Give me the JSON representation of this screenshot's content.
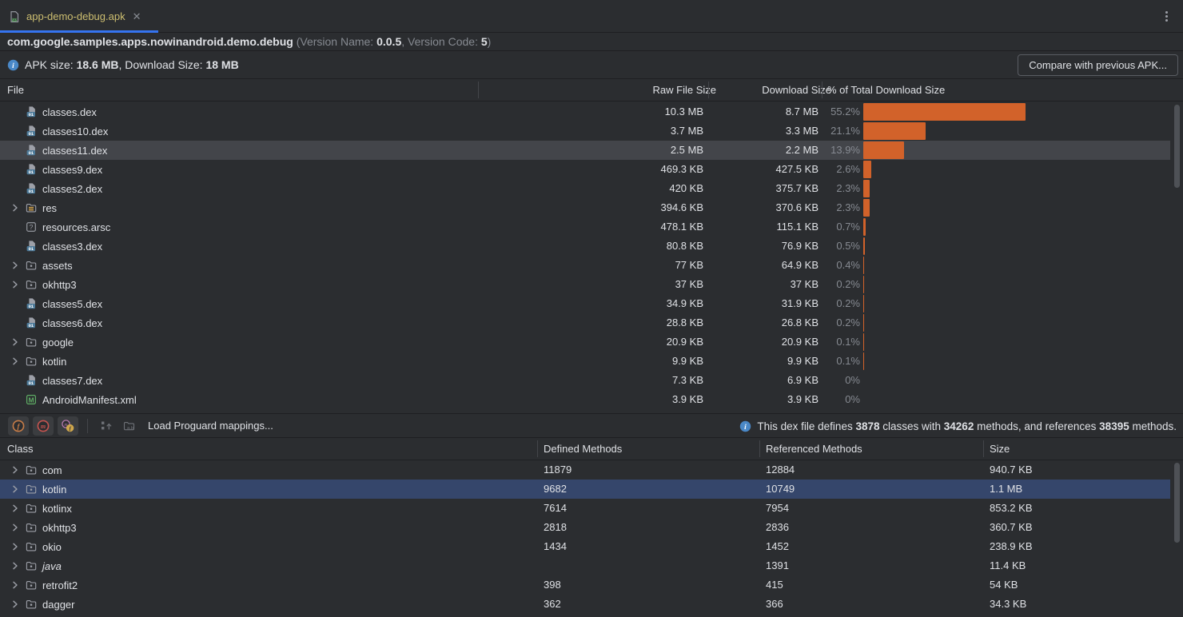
{
  "window": {
    "more_options_glyph": "kebab-menu"
  },
  "tab": {
    "label": "app-demo-debug.apk",
    "close_glyph": "✕"
  },
  "header": {
    "package_name": "com.google.samples.apps.nowinandroid.demo.debug",
    "version_open": " (Version Name: ",
    "version_name": "0.0.5",
    "version_sep": ", Version Code: ",
    "version_code": "5",
    "version_close": ")",
    "apk_size_label": "APK size: ",
    "apk_size_value": "18.6 MB",
    "download_size_label": ", Download Size: ",
    "download_size_value": "18 MB",
    "compare_button_label": "Compare with previous APK..."
  },
  "files_table": {
    "columns": {
      "file": "File",
      "raw": "Raw File Size",
      "download": "Download Size",
      "percent": "% of Total Download Size"
    },
    "rows": [
      {
        "name": "classes.dex",
        "icon": "dex-file-icon",
        "expandable": false,
        "raw": "10.3 MB",
        "download": "8.7 MB",
        "percent_label": "55.2%",
        "percent": 55.2,
        "selected": false
      },
      {
        "name": "classes10.dex",
        "icon": "dex-file-icon",
        "expandable": false,
        "raw": "3.7 MB",
        "download": "3.3 MB",
        "percent_label": "21.1%",
        "percent": 21.1,
        "selected": false
      },
      {
        "name": "classes11.dex",
        "icon": "dex-file-icon",
        "expandable": false,
        "raw": "2.5 MB",
        "download": "2.2 MB",
        "percent_label": "13.9%",
        "percent": 13.9,
        "selected": true
      },
      {
        "name": "classes9.dex",
        "icon": "dex-file-icon",
        "expandable": false,
        "raw": "469.3 KB",
        "download": "427.5 KB",
        "percent_label": "2.6%",
        "percent": 2.6,
        "selected": false
      },
      {
        "name": "classes2.dex",
        "icon": "dex-file-icon",
        "expandable": false,
        "raw": "420 KB",
        "download": "375.7 KB",
        "percent_label": "2.3%",
        "percent": 2.3,
        "selected": false
      },
      {
        "name": "res",
        "icon": "res-folder-icon",
        "expandable": true,
        "raw": "394.6 KB",
        "download": "370.6 KB",
        "percent_label": "2.3%",
        "percent": 2.3,
        "selected": false
      },
      {
        "name": "resources.arsc",
        "icon": "arsc-file-icon",
        "expandable": false,
        "raw": "478.1 KB",
        "download": "115.1 KB",
        "percent_label": "0.7%",
        "percent": 0.7,
        "selected": false
      },
      {
        "name": "classes3.dex",
        "icon": "dex-file-icon",
        "expandable": false,
        "raw": "80.8 KB",
        "download": "76.9 KB",
        "percent_label": "0.5%",
        "percent": 0.5,
        "selected": false
      },
      {
        "name": "assets",
        "icon": "folder-icon",
        "expandable": true,
        "raw": "77 KB",
        "download": "64.9 KB",
        "percent_label": "0.4%",
        "percent": 0.4,
        "selected": false
      },
      {
        "name": "okhttp3",
        "icon": "folder-icon",
        "expandable": true,
        "raw": "37 KB",
        "download": "37 KB",
        "percent_label": "0.2%",
        "percent": 0.2,
        "selected": false
      },
      {
        "name": "classes5.dex",
        "icon": "dex-file-icon",
        "expandable": false,
        "raw": "34.9 KB",
        "download": "31.9 KB",
        "percent_label": "0.2%",
        "percent": 0.2,
        "selected": false
      },
      {
        "name": "classes6.dex",
        "icon": "dex-file-icon",
        "expandable": false,
        "raw": "28.8 KB",
        "download": "26.8 KB",
        "percent_label": "0.2%",
        "percent": 0.2,
        "selected": false
      },
      {
        "name": "google",
        "icon": "folder-icon",
        "expandable": true,
        "raw": "20.9 KB",
        "download": "20.9 KB",
        "percent_label": "0.1%",
        "percent": 0.1,
        "selected": false
      },
      {
        "name": "kotlin",
        "icon": "folder-icon",
        "expandable": true,
        "raw": "9.9 KB",
        "download": "9.9 KB",
        "percent_label": "0.1%",
        "percent": 0.1,
        "selected": false
      },
      {
        "name": "classes7.dex",
        "icon": "dex-file-icon",
        "expandable": false,
        "raw": "7.3 KB",
        "download": "6.9 KB",
        "percent_label": "0%",
        "percent": 0,
        "selected": false
      },
      {
        "name": "AndroidManifest.xml",
        "icon": "manifest-file-icon",
        "expandable": false,
        "raw": "3.9 KB",
        "download": "3.9 KB",
        "percent_label": "0%",
        "percent": 0,
        "selected": false
      }
    ]
  },
  "dex_toolbar": {
    "load_mappings_label": "Load Proguard mappings...",
    "info": {
      "prefix": "This dex file defines ",
      "classes_count": "3878",
      "mid_classes": " classes with ",
      "methods_count": "34262",
      "mid_methods": " methods, and references ",
      "referenced_count": "38395",
      "suffix": " methods."
    }
  },
  "classes_table": {
    "columns": {
      "class": "Class",
      "defined": "Defined Methods",
      "referenced": "Referenced Methods",
      "size": "Size"
    },
    "rows": [
      {
        "name": "com",
        "defined": "11879",
        "referenced": "12884",
        "size": "940.7 KB",
        "selected": false,
        "italic": false
      },
      {
        "name": "kotlin",
        "defined": "9682",
        "referenced": "10749",
        "size": "1.1 MB",
        "selected": true,
        "italic": false
      },
      {
        "name": "kotlinx",
        "defined": "7614",
        "referenced": "7954",
        "size": "853.2 KB",
        "selected": false,
        "italic": false
      },
      {
        "name": "okhttp3",
        "defined": "2818",
        "referenced": "2836",
        "size": "360.7 KB",
        "selected": false,
        "italic": false
      },
      {
        "name": "okio",
        "defined": "1434",
        "referenced": "1452",
        "size": "238.9 KB",
        "selected": false,
        "italic": false
      },
      {
        "name": "java",
        "defined": "",
        "referenced": "1391",
        "size": "11.4 KB",
        "selected": false,
        "italic": true
      },
      {
        "name": "retrofit2",
        "defined": "398",
        "referenced": "415",
        "size": "54 KB",
        "selected": false,
        "italic": false
      },
      {
        "name": "dagger",
        "defined": "362",
        "referenced": "366",
        "size": "34.3 KB",
        "selected": false,
        "italic": false
      }
    ]
  },
  "colors": {
    "accent_bar": "#d2622a",
    "selection_gray": "#43454a",
    "selection_blue": "#35466b",
    "tab_accent": "#3574f0",
    "tab_label": "#cdbe70",
    "info_blue": "#4a88c7",
    "text_primary": "#dfe1e5",
    "text_secondary": "#868a91"
  }
}
